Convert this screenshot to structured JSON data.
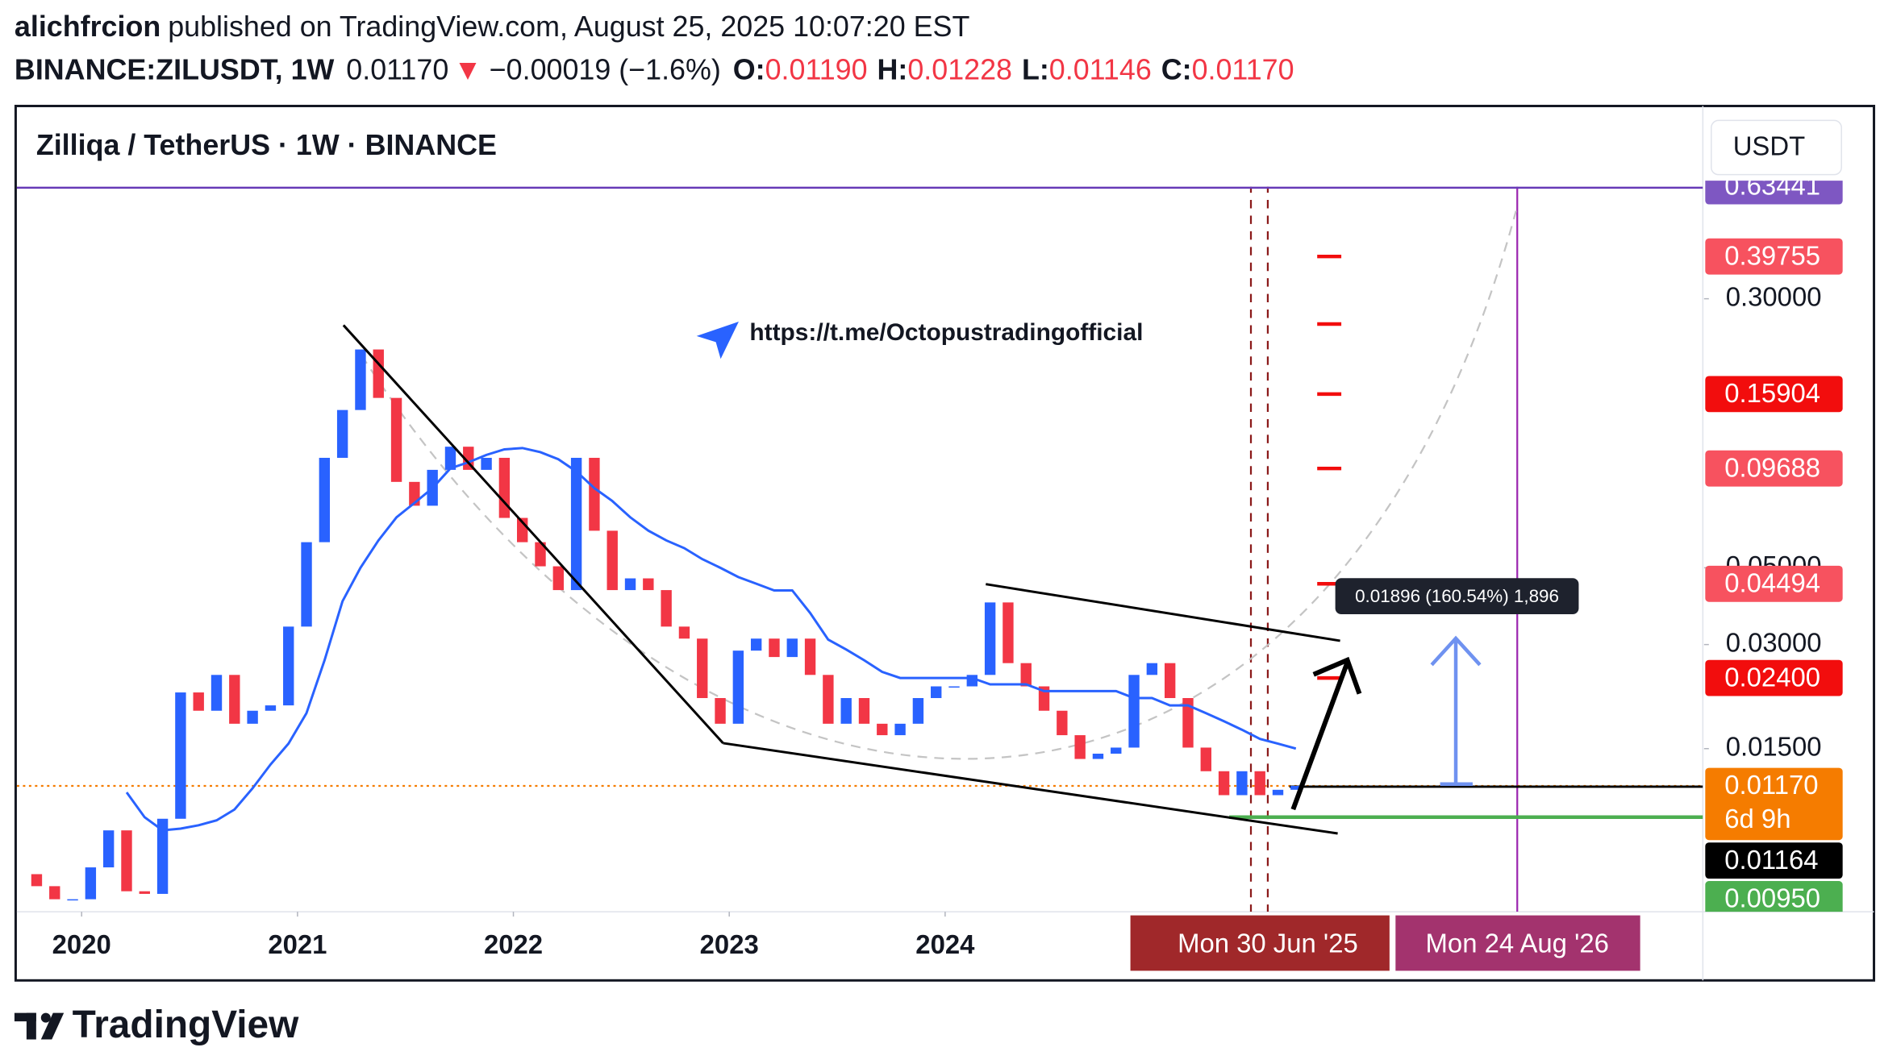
{
  "header": {
    "author": "alichfrcion",
    "byline": "published on TradingView.com, August 25, 2025 10:07:20 EST",
    "symbol": "BINANCE:ZILUSDT, 1W",
    "last": "0.01170",
    "change_arrow": "▼",
    "change": "−0.00019 (−1.6%)",
    "o_label": "O:",
    "o": "0.01190",
    "h_label": "H:",
    "h": "0.01228",
    "l_label": "L:",
    "l": "0.01146",
    "c_label": "C:",
    "c": "0.01170"
  },
  "chart_data": {
    "type": "candlestick",
    "title": "Zilliqa / TetherUS · 1W · BINANCE",
    "currency": "USDT",
    "x": [
      "2019-10",
      "2019-11",
      "2019-12",
      "2020-01",
      "2020-02",
      "2020-03",
      "2020-04",
      "2020-05",
      "2020-06",
      "2020-07",
      "2020-08",
      "2020-09",
      "2020-10",
      "2020-11",
      "2020-12",
      "2021-01",
      "2021-02",
      "2021-03",
      "2021-04",
      "2021-05",
      "2021-06",
      "2021-07",
      "2021-08",
      "2021-09",
      "2021-10",
      "2021-11",
      "2021-12",
      "2022-01",
      "2022-02",
      "2022-03",
      "2022-04",
      "2022-05",
      "2022-06",
      "2022-07",
      "2022-08",
      "2022-09",
      "2022-10",
      "2022-11",
      "2022-12",
      "2023-01",
      "2023-02",
      "2023-03",
      "2023-04",
      "2023-05",
      "2023-06",
      "2023-07",
      "2023-08",
      "2023-09",
      "2023-10",
      "2023-11",
      "2023-12",
      "2024-01",
      "2024-02",
      "2024-03",
      "2024-04",
      "2024-05",
      "2024-06",
      "2024-07",
      "2024-08",
      "2024-09",
      "2024-10",
      "2024-11",
      "2024-12",
      "2025-01",
      "2025-02",
      "2025-03",
      "2025-04",
      "2025-05",
      "2025-06",
      "2025-07",
      "2025-08"
    ],
    "open": [
      0.0065,
      0.006,
      0.0055,
      0.0055,
      0.0068,
      0.0087,
      0.0058,
      0.0057,
      0.0094,
      0.0218,
      0.0193,
      0.0245,
      0.0177,
      0.0193,
      0.02,
      0.0338,
      0.0593,
      0.104,
      0.143,
      0.214,
      0.155,
      0.0886,
      0.0756,
      0.096,
      0.112,
      0.096,
      0.104,
      0.0697,
      0.0593,
      0.0505,
      0.0431,
      0.104,
      0.064,
      0.0431,
      0.0466,
      0.0431,
      0.0338,
      0.0312,
      0.021,
      0.0177,
      0.0288,
      0.0312,
      0.0276,
      0.0312,
      0.0245,
      0.0177,
      0.021,
      0.0177,
      0.0164,
      0.0177,
      0.021,
      0.0227,
      0.0227,
      0.0245,
      0.0397,
      0.0265,
      0.0227,
      0.0193,
      0.0164,
      0.014,
      0.0145,
      0.0151,
      0.0245,
      0.0265,
      0.021,
      0.0151,
      0.0129,
      0.011,
      0.0129,
      0.011,
      0.0114
    ],
    "close": [
      0.006,
      0.0055,
      0.0055,
      0.0068,
      0.0087,
      0.0058,
      0.0057,
      0.0094,
      0.0218,
      0.0193,
      0.0245,
      0.0177,
      0.0193,
      0.02,
      0.0338,
      0.0593,
      0.104,
      0.143,
      0.214,
      0.155,
      0.0886,
      0.0756,
      0.096,
      0.112,
      0.096,
      0.104,
      0.0697,
      0.0593,
      0.0505,
      0.0431,
      0.104,
      0.064,
      0.0431,
      0.0466,
      0.0431,
      0.0338,
      0.0312,
      0.021,
      0.0177,
      0.0288,
      0.0312,
      0.0276,
      0.0312,
      0.0245,
      0.0177,
      0.021,
      0.0177,
      0.0164,
      0.0177,
      0.021,
      0.0227,
      0.0227,
      0.0245,
      0.0397,
      0.0265,
      0.0227,
      0.0193,
      0.0164,
      0.014,
      0.0145,
      0.0151,
      0.0245,
      0.0265,
      0.021,
      0.0151,
      0.0129,
      0.011,
      0.0129,
      0.011,
      0.0114,
      0.0117
    ],
    "ma": [
      null,
      null,
      null,
      null,
      null,
      0.0112,
      0.0095,
      0.0087,
      0.0088,
      0.009,
      0.0093,
      0.01,
      0.0115,
      0.0135,
      0.0155,
      0.019,
      0.027,
      0.04,
      0.05,
      0.06,
      0.07,
      0.077,
      0.085,
      0.097,
      0.101,
      0.106,
      0.11,
      0.111,
      0.108,
      0.103,
      0.095,
      0.085,
      0.078,
      0.07,
      0.064,
      0.06,
      0.057,
      0.053,
      0.05,
      0.047,
      0.045,
      0.043,
      0.043,
      0.037,
      0.031,
      0.029,
      0.027,
      0.025,
      0.024,
      0.024,
      0.024,
      0.024,
      0.024,
      0.023,
      0.023,
      0.023,
      0.022,
      0.022,
      0.022,
      0.022,
      0.022,
      0.021,
      0.021,
      0.02,
      0.02,
      0.019,
      0.018,
      0.017,
      0.016,
      0.0155,
      0.015
    ],
    "up_color": "#2962ff",
    "down_color": "#f23645",
    "ma_color": "#2962ff",
    "log_scale": true,
    "grid": false,
    "xlim": [
      2019.7,
      2027.51
    ],
    "xticks": [
      2020,
      2021,
      2022,
      2023,
      2024
    ],
    "ylim": [
      0.00506,
      1.083
    ],
    "yticks": [
      {
        "value": 0.3,
        "label": "0.30000"
      },
      {
        "value": 0.05,
        "label": "0.05000"
      },
      {
        "value": 0.03,
        "label": "0.03000"
      },
      {
        "value": 0.015,
        "label": "0.01500"
      }
    ],
    "price_labels": [
      {
        "value": 0.63441,
        "label": "0.63441",
        "color": "#7e57c2"
      },
      {
        "value": 0.39755,
        "label": "0.39755",
        "color": "#f7525f"
      },
      {
        "value": 0.15904,
        "label": "0.15904",
        "color": "#f20d0d"
      },
      {
        "value": 0.09688,
        "label": "0.09688",
        "color": "#f7525f"
      },
      {
        "value": 0.04494,
        "label": "0.04494",
        "color": "#f7525f"
      },
      {
        "value": 0.024,
        "label": "0.02400",
        "color": "#f20d0d"
      },
      {
        "value": 0.0117,
        "label": "0.01170",
        "color": "#f57c00"
      },
      {
        "value": 0.01164,
        "label": "0.01164",
        "color": "#000000"
      },
      {
        "value": 0.0095,
        "label": "0.00950",
        "color": "#4caf50"
      }
    ],
    "countdown": "6d 9h",
    "time_labels": [
      "Mon 30 Jun '25",
      "Mon 24 Aug '26"
    ],
    "measure_label": "0.01896 (160.54%) 1,896",
    "link": "https://t.me/Octopustradingofficial"
  },
  "footer": {
    "brand": "TradingView"
  }
}
